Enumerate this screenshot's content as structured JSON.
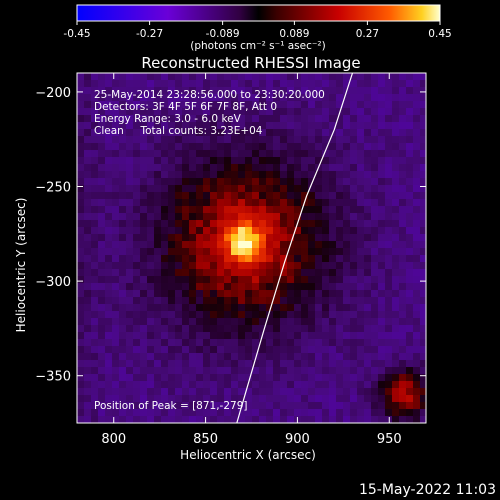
{
  "chart_data": {
    "type": "heatmap",
    "title": "Reconstructed RHESSI Image",
    "xlabel": "Heliocentric X (arcsec)",
    "ylabel": "Heliocentric Y (arcsec)",
    "xlim": [
      780,
      970
    ],
    "ylim": [
      -375,
      -190
    ],
    "xticks": [
      800,
      850,
      900,
      950
    ],
    "yticks": [
      -200,
      -250,
      -300,
      -350
    ],
    "colorbar": {
      "range": [
        -0.45,
        0.45
      ],
      "ticks": [
        "-0.45",
        "-0.27",
        "-0.089",
        "0.089",
        "0.27",
        "0.45"
      ],
      "label": "(photons cm⁻² s⁻¹ asec⁻²)"
    },
    "peak": {
      "x": 871,
      "y": -279,
      "value": 0.45
    },
    "info_lines": [
      "25-May-2014 23:28:56.000 to 23:30:20.000",
      "Detectors: 3F 4F 5F 6F 7F 8F, Att 0",
      "Energy Range: 3.0 - 6.0 keV",
      "Clean     Total counts: 3.23E+04"
    ],
    "peak_label": "Position of Peak = [871,-279]"
  },
  "footer": {
    "timestamp": "15-May-2022 11:03"
  },
  "colors": {
    "background": "#000000",
    "limb_line": "#ffffff"
  }
}
